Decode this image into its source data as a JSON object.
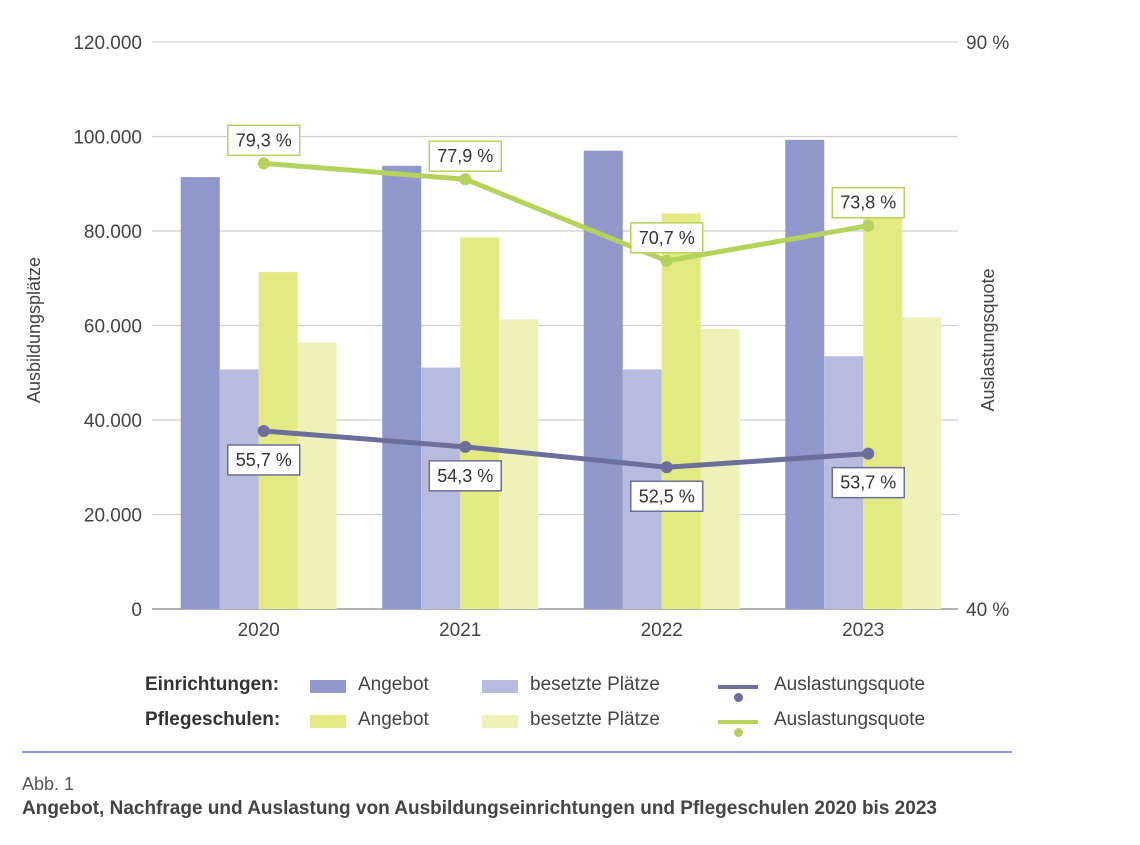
{
  "chart_data": {
    "type": "bar",
    "categories": [
      "2020",
      "2021",
      "2022",
      "2023"
    ],
    "series": [
      {
        "name": "Einrichtungen: Angebot",
        "axis": "left",
        "color": "#9097cb",
        "values": [
          91400,
          93800,
          97000,
          99300
        ]
      },
      {
        "name": "Einrichtungen: besetzte Plätze",
        "axis": "left",
        "color": "#b8bbe0",
        "values": [
          50700,
          51100,
          50700,
          53500
        ]
      },
      {
        "name": "Pflegeschulen: Angebot",
        "axis": "left",
        "color": "#e4ea82",
        "values": [
          71300,
          78600,
          83700,
          85000
        ]
      },
      {
        "name": "Pflegeschulen: besetzte Plätze",
        "axis": "left",
        "color": "#eff2b8",
        "values": [
          56400,
          61300,
          59300,
          61700
        ]
      }
    ],
    "lines": [
      {
        "name": "Pflegeschulen: Auslastungsquote",
        "axis": "right",
        "color": "#b5d35a",
        "values": [
          79.3,
          77.9,
          70.7,
          73.8
        ],
        "labels": [
          "79,3 %",
          "77,9 %",
          "70,7 %",
          "73,8 %"
        ]
      },
      {
        "name": "Einrichtungen: Auslastungsquote",
        "axis": "right",
        "color": "#6b6f9a",
        "values": [
          55.7,
          54.3,
          52.5,
          53.7
        ],
        "labels": [
          "55,7 %",
          "54,3 %",
          "52,5 %",
          "53,7 %"
        ]
      }
    ],
    "y_left": {
      "label": "Ausbildungsplätze",
      "min": 0,
      "max": 120000,
      "ticks": [
        0,
        20000,
        40000,
        60000,
        80000,
        100000,
        120000
      ],
      "tick_labels": [
        "0",
        "20.000",
        "40.000",
        "60.000",
        "80.000",
        "100.000",
        "120.000"
      ]
    },
    "y_right": {
      "label": "Auslastungsquote",
      "min": 40,
      "max": 90,
      "ticks": [
        40,
        90
      ],
      "tick_labels": [
        "40 %",
        "90 %"
      ]
    },
    "grid": true
  },
  "legend": {
    "rows": [
      {
        "group": "Einrichtungen:",
        "items": [
          {
            "label": "Angebot",
            "kind": "bar",
            "color": "#9097cb"
          },
          {
            "label": "besetzte Plätze",
            "kind": "bar",
            "color": "#b8bbe0"
          },
          {
            "label": "Auslastungsquote",
            "kind": "line",
            "color": "#6b6f9a"
          }
        ]
      },
      {
        "group": "Pflegeschulen:",
        "items": [
          {
            "label": "Angebot",
            "kind": "bar",
            "color": "#e4ea82"
          },
          {
            "label": "besetzte Plätze",
            "kind": "bar",
            "color": "#eff2b8"
          },
          {
            "label": "Auslastungsquote",
            "kind": "line",
            "color": "#b5d35a"
          }
        ]
      }
    ]
  },
  "caption": {
    "number": "Abb. 1",
    "title": "Angebot, Nachfrage und Auslastung von Ausbildungseinrichtungen und Pflegeschulen 2020 bis 2023"
  }
}
